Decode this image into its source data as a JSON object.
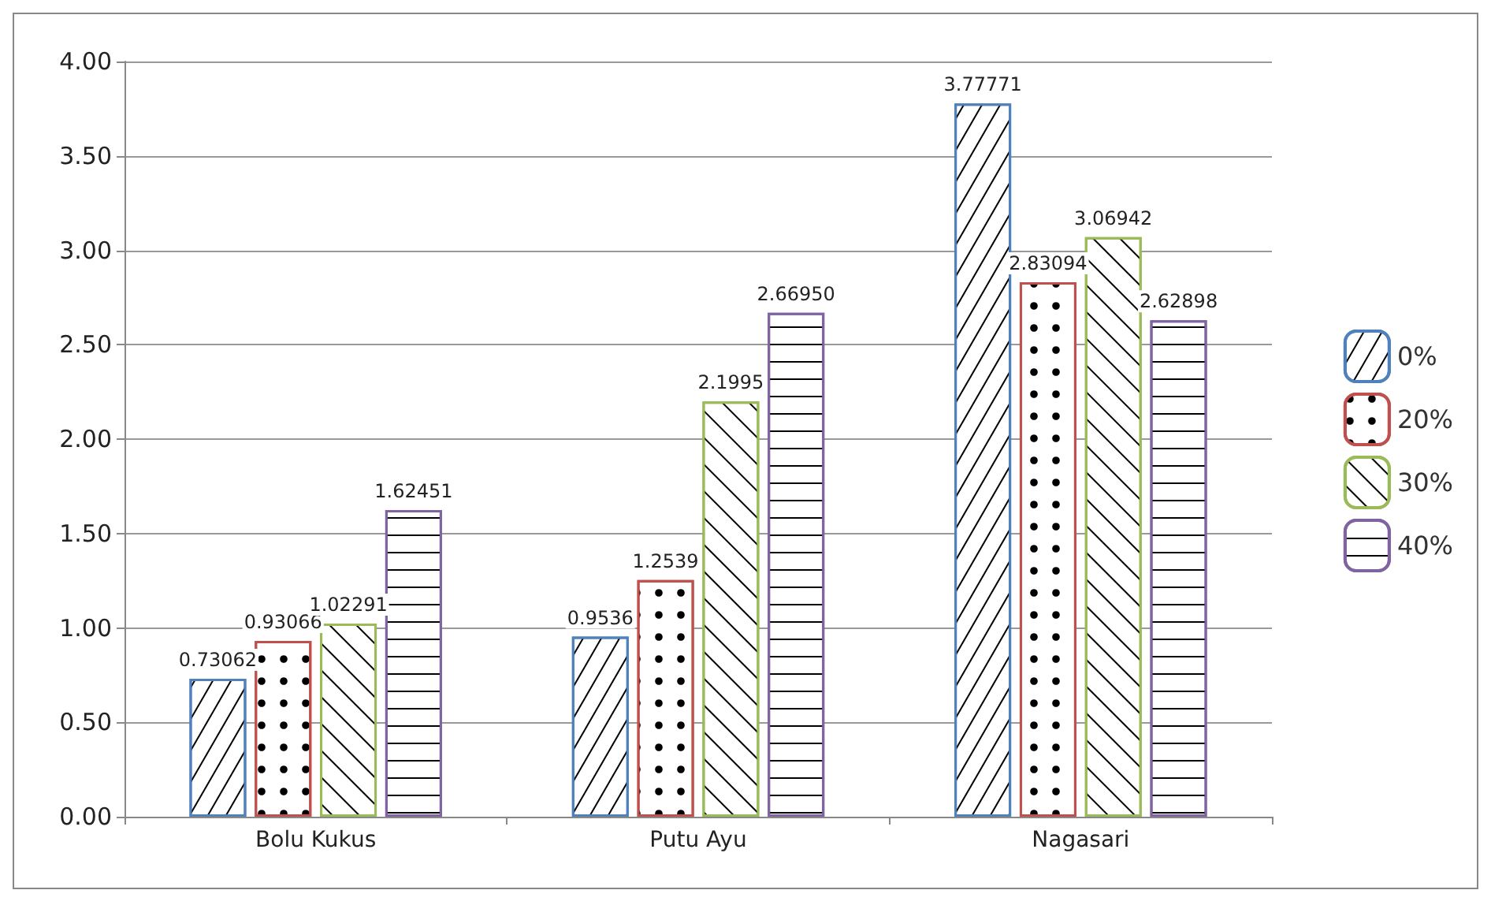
{
  "chart_data": {
    "type": "bar",
    "categories": [
      "Bolu Kukus",
      "Putu Ayu",
      "Nagasari"
    ],
    "series": [
      {
        "name": "0%",
        "color": "#4f81bd",
        "values": [
          0.73062,
          0.9536,
          3.77771
        ],
        "value_labels": [
          "0.73062",
          "0.9536",
          "3.77771"
        ]
      },
      {
        "name": "20%",
        "color": "#c0504d",
        "values": [
          0.93066,
          1.2539,
          2.83094
        ],
        "value_labels": [
          "0.93066",
          "1.2539",
          "2.83094"
        ]
      },
      {
        "name": "30%",
        "color": "#9bbb59",
        "values": [
          1.02291,
          2.1995,
          3.06942
        ],
        "value_labels": [
          "1.02291",
          "2.1995",
          "3.06942"
        ]
      },
      {
        "name": "40%",
        "color": "#8064a2",
        "values": [
          1.62451,
          2.6695,
          2.62898
        ],
        "value_labels": [
          "1.62451",
          "2.66950",
          "2.62898"
        ]
      }
    ],
    "ylim": [
      0,
      4
    ],
    "yticks": [
      {
        "value": 0,
        "label": "0.00"
      },
      {
        "value": 0.5,
        "label": "0.50"
      },
      {
        "value": 1,
        "label": "1.00"
      },
      {
        "value": 1.5,
        "label": "1.50"
      },
      {
        "value": 2,
        "label": "2.00"
      },
      {
        "value": 2.5,
        "label": "2.50"
      },
      {
        "value": 3,
        "label": "3.00"
      },
      {
        "value": 3.5,
        "label": "3.50"
      },
      {
        "value": 4,
        "label": "4.00"
      }
    ],
    "grid": "y",
    "legend": "right"
  }
}
